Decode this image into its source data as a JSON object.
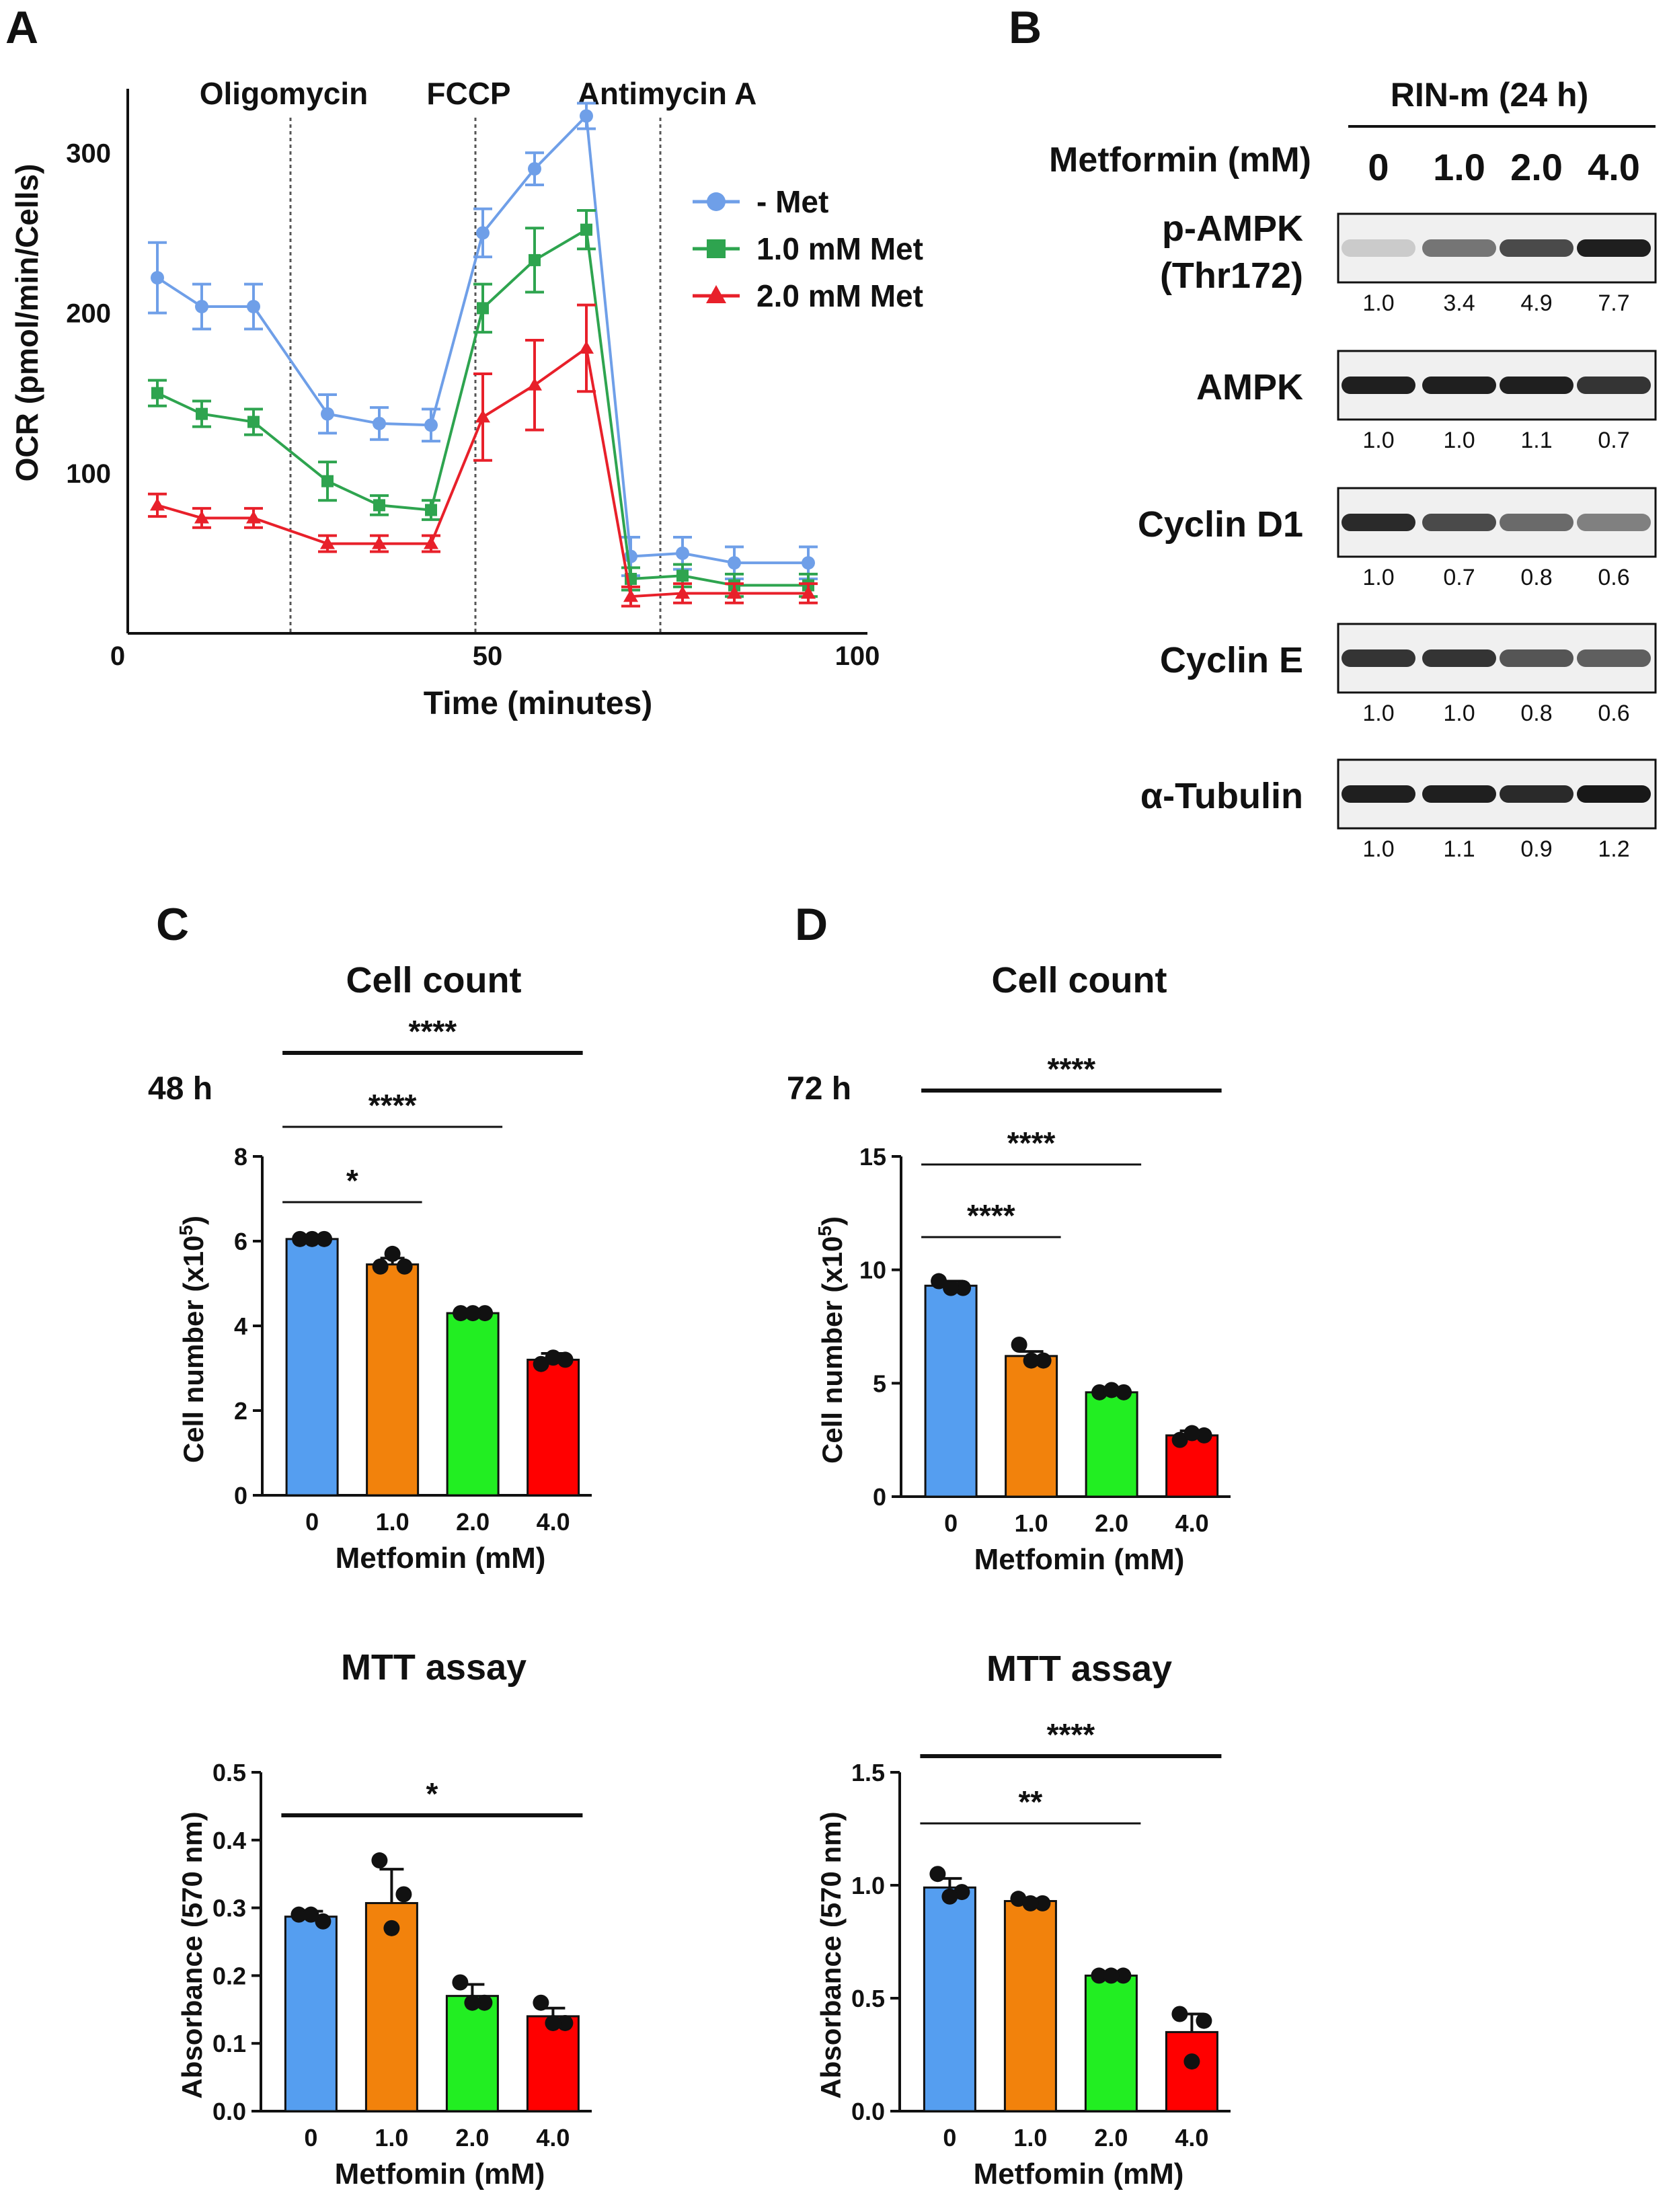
{
  "panel_letters": {
    "a": "A",
    "b": "B",
    "c": "C",
    "d": "D"
  },
  "chart_data": [
    {
      "id": "ocr",
      "type": "line",
      "xlabel": "Time (minutes)",
      "ylabel": "OCR (pmol/min/Cells)",
      "xlim": [
        0,
        100
      ],
      "ylim": [
        0,
        340
      ],
      "xticks": [
        "0",
        "50",
        "100"
      ],
      "yticks": [
        "100",
        "200",
        "300"
      ],
      "injections": [
        {
          "label": "Oligomycin",
          "x": 22
        },
        {
          "label": "FCCP",
          "x": 47
        },
        {
          "label": "Antimycin A",
          "x": 72
        }
      ],
      "x": [
        4,
        10,
        17,
        27,
        34,
        41,
        48,
        55,
        62,
        68,
        75,
        82,
        92
      ],
      "series": [
        {
          "name": "-  Met",
          "color": "#6f9fe8",
          "marker": "circle",
          "values": [
            222,
            204,
            204,
            137,
            131,
            130,
            250,
            290,
            323,
            48,
            50,
            44,
            44
          ],
          "errors": [
            22,
            14,
            14,
            12,
            10,
            10,
            15,
            10,
            8,
            12,
            10,
            10,
            10
          ]
        },
        {
          "name": "1.0 mM  Met",
          "color": "#2ea44f",
          "marker": "square",
          "values": [
            150,
            137,
            132,
            95,
            80,
            77,
            203,
            233,
            252,
            34,
            36,
            30,
            30
          ],
          "errors": [
            8,
            8,
            8,
            12,
            6,
            6,
            15,
            20,
            12,
            7,
            7,
            7,
            7
          ]
        },
        {
          "name": "2.0 mM  Met",
          "color": "#e8202a",
          "marker": "triangle",
          "values": [
            80,
            72,
            72,
            56,
            56,
            56,
            135,
            155,
            178,
            23,
            25,
            25,
            25
          ],
          "errors": [
            7,
            6,
            6,
            5,
            5,
            5,
            27,
            28,
            27,
            6,
            6,
            6,
            6
          ]
        }
      ]
    },
    {
      "id": "cell-count-48h",
      "type": "bar",
      "title": "Cell count",
      "time_label": "48 h",
      "xlabel": "Metfomin (mM)",
      "ylabel": "Cell number (x10",
      "ylabel_sup": "5",
      "ylabel_end": ")",
      "categories": [
        "0",
        "1.0",
        "2.0",
        "4.0"
      ],
      "values": [
        6.05,
        5.45,
        4.3,
        3.2
      ],
      "errors": [
        0.05,
        0.15,
        0.05,
        0.15
      ],
      "points": [
        [
          6.05,
          6.05,
          6.05
        ],
        [
          5.4,
          5.4,
          5.7
        ],
        [
          4.3,
          4.3,
          4.3
        ],
        [
          3.1,
          3.2,
          3.25
        ]
      ],
      "colors": [
        "#559ef0",
        "#f2820c",
        "#22ee22",
        "#ff0000"
      ],
      "ylim": [
        0,
        8
      ],
      "yticks": [
        "0",
        "2",
        "4",
        "6",
        "8"
      ],
      "significance": [
        {
          "from": 0,
          "to": 1,
          "label": "*"
        },
        {
          "from": 0,
          "to": 2,
          "label": "****"
        },
        {
          "from": 0,
          "to": 3,
          "label": "****"
        }
      ]
    },
    {
      "id": "cell-count-72h",
      "type": "bar",
      "title": "Cell count",
      "time_label": "72 h",
      "xlabel": "Metfomin (mM)",
      "ylabel": "Cell number (x10",
      "ylabel_sup": "5",
      "ylabel_end": ")",
      "categories": [
        "0",
        "1.0",
        "2.0",
        "4.0"
      ],
      "values": [
        9.3,
        6.2,
        4.6,
        2.7
      ],
      "errors": [
        0.2,
        0.2,
        0.1,
        0.2
      ],
      "points": [
        [
          9.5,
          9.2,
          9.2
        ],
        [
          6.7,
          6.0,
          6.0
        ],
        [
          4.6,
          4.6,
          4.7
        ],
        [
          2.5,
          2.7,
          2.8
        ]
      ],
      "colors": [
        "#559ef0",
        "#f2820c",
        "#22ee22",
        "#ff0000"
      ],
      "ylim": [
        0,
        15
      ],
      "yticks": [
        "0",
        "5",
        "10",
        "15"
      ],
      "significance": [
        {
          "from": 0,
          "to": 1,
          "label": "****"
        },
        {
          "from": 0,
          "to": 2,
          "label": "****"
        },
        {
          "from": 0,
          "to": 3,
          "label": "****"
        }
      ]
    },
    {
      "id": "mtt-48h",
      "type": "bar",
      "title": "MTT assay",
      "xlabel": "Metfomin (mM)",
      "ylabel": "Absorbance (570 nm)",
      "categories": [
        "0",
        "1.0",
        "2.0",
        "4.0"
      ],
      "values": [
        0.287,
        0.307,
        0.17,
        0.14
      ],
      "errors": [
        0.008,
        0.05,
        0.017,
        0.012
      ],
      "points": [
        [
          0.29,
          0.28,
          0.29
        ],
        [
          0.37,
          0.32,
          0.27
        ],
        [
          0.19,
          0.16,
          0.16
        ],
        [
          0.16,
          0.13,
          0.13
        ]
      ],
      "colors": [
        "#559ef0",
        "#f2820c",
        "#22ee22",
        "#ff0000"
      ],
      "ylim": [
        0,
        0.5
      ],
      "yticks": [
        "0.0",
        "0.1",
        "0.2",
        "0.3",
        "0.4",
        "0.5"
      ],
      "significance": [
        {
          "from": 0,
          "to": 3,
          "label": "*"
        }
      ]
    },
    {
      "id": "mtt-72h",
      "type": "bar",
      "title": "MTT assay",
      "xlabel": "Metfomin (mM)",
      "ylabel": "Absorbance (570 nm)",
      "categories": [
        "0",
        "1.0",
        "2.0",
        "4.0"
      ],
      "values": [
        0.99,
        0.93,
        0.6,
        0.35
      ],
      "errors": [
        0.04,
        0.01,
        0.01,
        0.08
      ],
      "points": [
        [
          1.05,
          0.97,
          0.95
        ],
        [
          0.94,
          0.92,
          0.92
        ],
        [
          0.6,
          0.6,
          0.6
        ],
        [
          0.43,
          0.4,
          0.22
        ]
      ],
      "colors": [
        "#559ef0",
        "#f2820c",
        "#22ee22",
        "#ff0000"
      ],
      "ylim": [
        0,
        1.5
      ],
      "yticks": [
        "0.0",
        "0.5",
        "1.0",
        "1.5"
      ],
      "significance": [
        {
          "from": 0,
          "to": 2,
          "label": "**"
        },
        {
          "from": 0,
          "to": 3,
          "label": "****"
        }
      ]
    }
  ],
  "blot": {
    "cell_line": "RIN-m (24 h)",
    "dose_label": "Metformin (mM)",
    "doses": [
      "0",
      "1.0",
      "2.0",
      "4.0"
    ],
    "rows": [
      {
        "label": "p-AMPK",
        "label2": "(Thr172)",
        "intensities": [
          0.15,
          0.55,
          0.75,
          0.95
        ],
        "quant": [
          "1.0",
          "3.4",
          "4.9",
          "7.7"
        ]
      },
      {
        "label": "AMPK",
        "label2": "",
        "intensities": [
          0.95,
          0.95,
          0.95,
          0.85
        ],
        "quant": [
          "1.0",
          "1.0",
          "1.1",
          "0.7"
        ]
      },
      {
        "label": "Cyclin D1",
        "label2": "",
        "intensities": [
          0.9,
          0.75,
          0.6,
          0.5
        ],
        "quant": [
          "1.0",
          "0.7",
          "0.8",
          "0.6"
        ]
      },
      {
        "label": "Cyclin E",
        "label2": "",
        "intensities": [
          0.85,
          0.85,
          0.7,
          0.65
        ],
        "quant": [
          "1.0",
          "1.0",
          "0.8",
          "0.6"
        ]
      },
      {
        "label": "α-Tubulin",
        "label2": "",
        "intensities": [
          0.95,
          0.95,
          0.9,
          0.98
        ],
        "quant": [
          "1.0",
          "1.1",
          "0.9",
          "1.2"
        ]
      }
    ]
  }
}
